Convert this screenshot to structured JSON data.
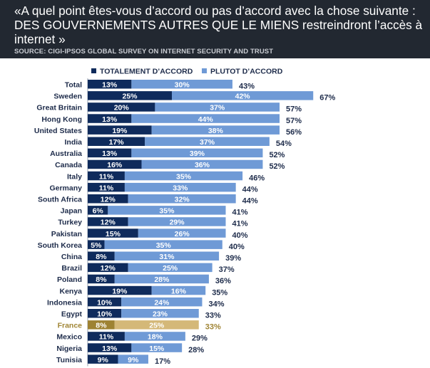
{
  "header": {
    "title": "«A quel point êtes-vous d’accord ou pas d’accord avec la chose suivante : DES GOUVERNEMENTS AUTRES QUE LE MIENS restreindront l’accès à internet »",
    "source": "SOURCE: CIGI-IPSOS GLOBAL SURVEY ON INTERNET SECURITY AND TRUST"
  },
  "colors": {
    "header_bg": "#222831",
    "totalement": "#0f2b5c",
    "plutot": "#6f9ad6",
    "highlight_totalement": "#9e8232",
    "highlight_plutot": "#d4b878",
    "highlight_label": "#a08535"
  },
  "chart_data": {
    "type": "bar",
    "orientation": "horizontal",
    "stacked": true,
    "legend_position": "top",
    "categories": [
      "Total",
      "Sweden",
      "Great Britain",
      "Hong Kong",
      "United States",
      "India",
      "Australia",
      "Canada",
      "Italy",
      "Germany",
      "South Africa",
      "Japan",
      "Turkey",
      "Pakistan",
      "South Korea",
      "China",
      "Brazil",
      "Poland",
      "Kenya",
      "Indonesia",
      "Egypt",
      "France",
      "Mexico",
      "Nigeria",
      "Tunisia"
    ],
    "series": [
      {
        "name": "TOTALEMENT D’ACCORD",
        "values": [
          13,
          25,
          20,
          13,
          19,
          17,
          13,
          16,
          11,
          11,
          12,
          6,
          12,
          15,
          5,
          8,
          12,
          8,
          19,
          10,
          10,
          8,
          11,
          13,
          9
        ]
      },
      {
        "name": "PLUTOT D’ACCORD",
        "values": [
          30,
          42,
          37,
          44,
          38,
          37,
          39,
          36,
          35,
          33,
          32,
          35,
          29,
          26,
          35,
          31,
          25,
          28,
          16,
          24,
          23,
          25,
          18,
          15,
          9
        ]
      }
    ],
    "totals": [
      43,
      67,
      57,
      57,
      56,
      54,
      52,
      52,
      46,
      44,
      44,
      41,
      41,
      40,
      40,
      39,
      37,
      36,
      35,
      34,
      33,
      33,
      29,
      28,
      17
    ],
    "highlight": "France",
    "value_suffix": "%"
  }
}
